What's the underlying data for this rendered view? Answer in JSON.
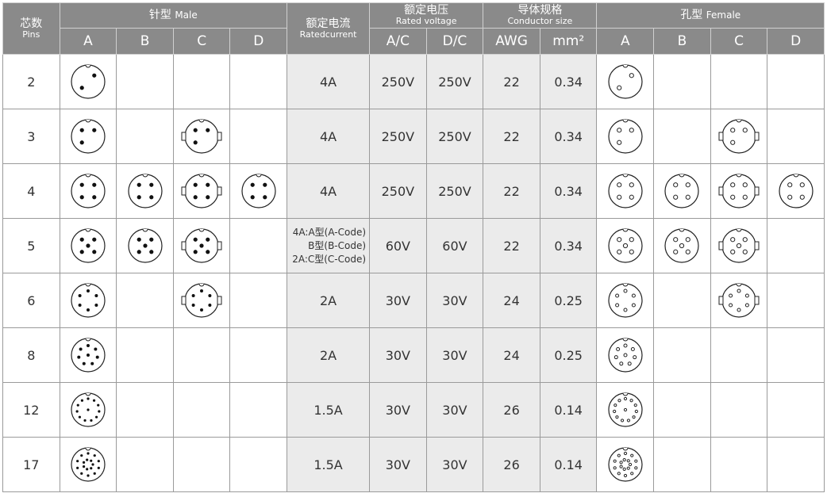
{
  "header": {
    "pins_cn": "芯数",
    "pins_en": "Pins",
    "male_cn": "针型",
    "male_en": "Male",
    "current_cn": "额定电流",
    "current_en": "Ratedcurrent",
    "voltage_cn": "额定电压",
    "voltage_en": "Rated voltage",
    "conductor_cn": "导体规格",
    "conductor_en": "Conductor size",
    "female_cn": "孔型",
    "female_en": "Female",
    "codes": [
      "A",
      "B",
      "C",
      "D"
    ],
    "ac": "A/C",
    "dc": "D/C",
    "awg": "AWG",
    "mm2": "mm²"
  },
  "rows": [
    {
      "pins": "2",
      "male": [
        2,
        0,
        0,
        0
      ],
      "current": "4A",
      "ac": "250V",
      "dc": "250V",
      "awg": "22",
      "mm2": "0.34",
      "female": [
        2,
        0,
        0,
        0
      ]
    },
    {
      "pins": "3",
      "male": [
        3,
        0,
        3,
        0
      ],
      "current": "4A",
      "ac": "250V",
      "dc": "250V",
      "awg": "22",
      "mm2": "0.34",
      "female": [
        3,
        0,
        3,
        0
      ]
    },
    {
      "pins": "4",
      "male": [
        4,
        4,
        4,
        4
      ],
      "current": "4A",
      "ac": "250V",
      "dc": "250V",
      "awg": "22",
      "mm2": "0.34",
      "female": [
        4,
        4,
        4,
        4
      ]
    },
    {
      "pins": "5",
      "male": [
        5,
        5,
        5,
        0
      ],
      "current_lines": [
        "4A:A型(A-Code)",
        "B型(B-Code)",
        "2A:C型(C-Code)"
      ],
      "ac": "60V",
      "dc": "60V",
      "awg": "22",
      "mm2": "0.34",
      "female": [
        5,
        5,
        5,
        0
      ]
    },
    {
      "pins": "6",
      "male": [
        6,
        0,
        6,
        0
      ],
      "current": "2A",
      "ac": "30V",
      "dc": "30V",
      "awg": "24",
      "mm2": "0.25",
      "female": [
        6,
        0,
        6,
        0
      ]
    },
    {
      "pins": "8",
      "male": [
        8,
        0,
        0,
        0
      ],
      "current": "2A",
      "ac": "30V",
      "dc": "30V",
      "awg": "24",
      "mm2": "0.25",
      "female": [
        8,
        0,
        0,
        0
      ]
    },
    {
      "pins": "12",
      "male": [
        12,
        0,
        0,
        0
      ],
      "current": "1.5A",
      "ac": "30V",
      "dc": "30V",
      "awg": "26",
      "mm2": "0.14",
      "female": [
        12,
        0,
        0,
        0
      ]
    },
    {
      "pins": "17",
      "male": [
        17,
        0,
        0,
        0
      ],
      "current": "1.5A",
      "ac": "30V",
      "dc": "30V",
      "awg": "26",
      "mm2": "0.14",
      "female": [
        17,
        0,
        0,
        0
      ]
    }
  ],
  "colors": {
    "header_bg": "#8a8a8a",
    "spec_bg": "#ebebeb"
  }
}
